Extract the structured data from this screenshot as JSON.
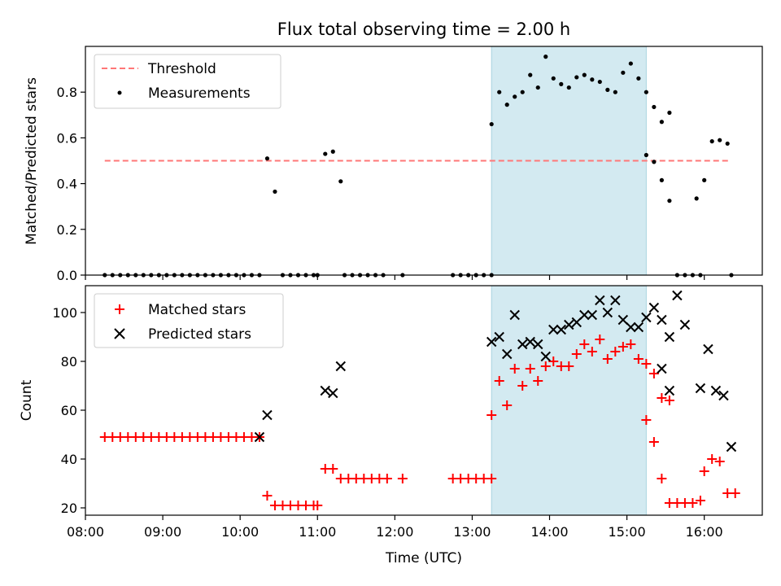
{
  "chart_data": [
    {
      "type": "scatter",
      "title": "Flux total observing time = 2.00 h",
      "ylabel": "Matched/Predicted stars",
      "xlabel": "",
      "xlim": [
        "08:00",
        "16:45"
      ],
      "ylim": [
        0,
        1.0
      ],
      "yticks": [
        "0.0",
        "0.2",
        "0.4",
        "0.6",
        "0.8"
      ],
      "grid": false,
      "legend_position": "upper-left",
      "highlight_span": {
        "start": "13:15",
        "end": "15:15",
        "color": "#d3eaf1"
      },
      "threshold": {
        "name": "Threshold",
        "y": 0.5,
        "x_start": "08:15",
        "x_end": "16:20",
        "color": "#ff7777",
        "style": "dashed"
      },
      "series": [
        {
          "name": "Measurements",
          "color": "#000000",
          "marker": "dot",
          "points": [
            [
              "08:15",
              0
            ],
            [
              "08:21",
              0
            ],
            [
              "08:27",
              0
            ],
            [
              "08:33",
              0
            ],
            [
              "08:39",
              0
            ],
            [
              "08:45",
              0
            ],
            [
              "08:51",
              0
            ],
            [
              "08:57",
              0
            ],
            [
              "09:03",
              0
            ],
            [
              "09:09",
              0
            ],
            [
              "09:15",
              0
            ],
            [
              "09:21",
              0
            ],
            [
              "09:27",
              0
            ],
            [
              "09:33",
              0
            ],
            [
              "09:39",
              0
            ],
            [
              "09:45",
              0
            ],
            [
              "09:51",
              0
            ],
            [
              "09:57",
              0
            ],
            [
              "10:03",
              0
            ],
            [
              "10:09",
              0
            ],
            [
              "10:15",
              0
            ],
            [
              "10:21",
              0.51
            ],
            [
              "10:27",
              0.365
            ],
            [
              "10:33",
              0
            ],
            [
              "10:39",
              0
            ],
            [
              "10:45",
              0
            ],
            [
              "10:51",
              0
            ],
            [
              "10:57",
              0
            ],
            [
              "11:00",
              0
            ],
            [
              "11:06",
              0.53
            ],
            [
              "11:12",
              0.54
            ],
            [
              "11:18",
              0.41
            ],
            [
              "11:21",
              0
            ],
            [
              "11:27",
              0
            ],
            [
              "11:33",
              0
            ],
            [
              "11:39",
              0
            ],
            [
              "11:45",
              0
            ],
            [
              "11:51",
              0
            ],
            [
              "12:06",
              0
            ],
            [
              "12:45",
              0
            ],
            [
              "12:51",
              0
            ],
            [
              "12:57",
              0
            ],
            [
              "13:03",
              0
            ],
            [
              "13:09",
              0
            ],
            [
              "13:15",
              0
            ],
            [
              "13:15",
              0.66
            ],
            [
              "13:21",
              0.8
            ],
            [
              "13:27",
              0.745
            ],
            [
              "13:33",
              0.78
            ],
            [
              "13:39",
              0.8
            ],
            [
              "13:45",
              0.875
            ],
            [
              "13:51",
              0.82
            ],
            [
              "13:57",
              0.955
            ],
            [
              "14:03",
              0.86
            ],
            [
              "14:09",
              0.835
            ],
            [
              "14:15",
              0.82
            ],
            [
              "14:21",
              0.865
            ],
            [
              "14:27",
              0.875
            ],
            [
              "14:33",
              0.855
            ],
            [
              "14:39",
              0.845
            ],
            [
              "14:45",
              0.81
            ],
            [
              "14:51",
              0.8
            ],
            [
              "14:57",
              0.885
            ],
            [
              "15:03",
              0.925
            ],
            [
              "15:09",
              0.86
            ],
            [
              "15:15",
              0.8
            ],
            [
              "15:21",
              0.735
            ],
            [
              "15:27",
              0.67
            ],
            [
              "15:33",
              0.71
            ],
            [
              "15:15",
              0.525
            ],
            [
              "15:21",
              0.495
            ],
            [
              "15:27",
              0.415
            ],
            [
              "15:33",
              0.325
            ],
            [
              "15:39",
              0
            ],
            [
              "15:45",
              0
            ],
            [
              "15:51",
              0
            ],
            [
              "15:57",
              0
            ],
            [
              "15:54",
              0.335
            ],
            [
              "16:00",
              0.415
            ],
            [
              "16:06",
              0.585
            ],
            [
              "16:12",
              0.59
            ],
            [
              "16:18",
              0.575
            ],
            [
              "16:21",
              0
            ]
          ]
        }
      ]
    },
    {
      "type": "scatter",
      "xlabel": "Time (UTC)",
      "ylabel": "Count",
      "xlim": [
        "08:00",
        "16:45"
      ],
      "ylim": [
        17,
        111
      ],
      "xticks": [
        "08:00",
        "09:00",
        "10:00",
        "11:00",
        "12:00",
        "13:00",
        "14:00",
        "15:00",
        "16:00"
      ],
      "yticks": [
        "20",
        "40",
        "60",
        "80",
        "100"
      ],
      "grid": false,
      "legend_position": "upper-left",
      "highlight_span": {
        "start": "13:15",
        "end": "15:15",
        "color": "#d3eaf1"
      },
      "series": [
        {
          "name": "Matched stars",
          "color": "#ff0000",
          "marker": "plus",
          "points": [
            [
              "08:15",
              49
            ],
            [
              "08:21",
              49
            ],
            [
              "08:27",
              49
            ],
            [
              "08:33",
              49
            ],
            [
              "08:39",
              49
            ],
            [
              "08:45",
              49
            ],
            [
              "08:51",
              49
            ],
            [
              "08:57",
              49
            ],
            [
              "09:03",
              49
            ],
            [
              "09:09",
              49
            ],
            [
              "09:15",
              49
            ],
            [
              "09:21",
              49
            ],
            [
              "09:27",
              49
            ],
            [
              "09:33",
              49
            ],
            [
              "09:39",
              49
            ],
            [
              "09:45",
              49
            ],
            [
              "09:51",
              49
            ],
            [
              "09:57",
              49
            ],
            [
              "10:03",
              49
            ],
            [
              "10:09",
              49
            ],
            [
              "10:15",
              49
            ],
            [
              "10:21",
              25
            ],
            [
              "10:27",
              21
            ],
            [
              "10:33",
              21
            ],
            [
              "10:39",
              21
            ],
            [
              "10:45",
              21
            ],
            [
              "10:51",
              21
            ],
            [
              "10:57",
              21
            ],
            [
              "11:00",
              21
            ],
            [
              "11:06",
              36
            ],
            [
              "11:12",
              36
            ],
            [
              "11:18",
              32
            ],
            [
              "11:24",
              32
            ],
            [
              "11:30",
              32
            ],
            [
              "11:36",
              32
            ],
            [
              "11:42",
              32
            ],
            [
              "11:48",
              32
            ],
            [
              "11:54",
              32
            ],
            [
              "12:06",
              32
            ],
            [
              "12:45",
              32
            ],
            [
              "12:51",
              32
            ],
            [
              "12:57",
              32
            ],
            [
              "13:03",
              32
            ],
            [
              "13:09",
              32
            ],
            [
              "13:15",
              32
            ],
            [
              "13:15",
              58
            ],
            [
              "13:21",
              72
            ],
            [
              "13:27",
              62
            ],
            [
              "13:33",
              77
            ],
            [
              "13:39",
              70
            ],
            [
              "13:45",
              77
            ],
            [
              "13:51",
              72
            ],
            [
              "13:57",
              78
            ],
            [
              "14:03",
              80
            ],
            [
              "14:09",
              78
            ],
            [
              "14:15",
              78
            ],
            [
              "14:21",
              83
            ],
            [
              "14:27",
              87
            ],
            [
              "14:33",
              84
            ],
            [
              "14:39",
              89
            ],
            [
              "14:45",
              81
            ],
            [
              "14:51",
              84
            ],
            [
              "14:57",
              86
            ],
            [
              "15:03",
              87
            ],
            [
              "15:09",
              81
            ],
            [
              "15:15",
              79
            ],
            [
              "15:21",
              75
            ],
            [
              "15:27",
              65
            ],
            [
              "15:33",
              64
            ],
            [
              "15:15",
              56
            ],
            [
              "15:21",
              47
            ],
            [
              "15:27",
              32
            ],
            [
              "15:33",
              22
            ],
            [
              "15:39",
              22
            ],
            [
              "15:45",
              22
            ],
            [
              "15:51",
              22
            ],
            [
              "15:57",
              23
            ],
            [
              "16:00",
              35
            ],
            [
              "16:06",
              40
            ],
            [
              "16:12",
              39
            ],
            [
              "16:18",
              26
            ],
            [
              "16:24",
              26
            ]
          ]
        },
        {
          "name": "Predicted stars",
          "color": "#000000",
          "marker": "cross",
          "points": [
            [
              "10:15",
              49
            ],
            [
              "10:21",
              58
            ],
            [
              "11:06",
              68
            ],
            [
              "11:12",
              67
            ],
            [
              "11:18",
              78
            ],
            [
              "13:15",
              88
            ],
            [
              "13:21",
              90
            ],
            [
              "13:27",
              83
            ],
            [
              "13:33",
              99
            ],
            [
              "13:39",
              87
            ],
            [
              "13:45",
              88
            ],
            [
              "13:51",
              87
            ],
            [
              "13:57",
              82
            ],
            [
              "14:03",
              93
            ],
            [
              "14:09",
              93
            ],
            [
              "14:15",
              95
            ],
            [
              "14:21",
              96
            ],
            [
              "14:27",
              99
            ],
            [
              "14:33",
              99
            ],
            [
              "14:39",
              105
            ],
            [
              "14:45",
              100
            ],
            [
              "14:51",
              105
            ],
            [
              "14:57",
              97
            ],
            [
              "15:03",
              94
            ],
            [
              "15:09",
              94
            ],
            [
              "15:15",
              98
            ],
            [
              "15:21",
              102
            ],
            [
              "15:27",
              97
            ],
            [
              "15:33",
              90
            ],
            [
              "15:39",
              107
            ],
            [
              "15:45",
              95
            ],
            [
              "15:27",
              77
            ],
            [
              "15:33",
              68
            ],
            [
              "15:57",
              69
            ],
            [
              "16:03",
              85
            ],
            [
              "16:09",
              68
            ],
            [
              "16:15",
              66
            ],
            [
              "16:21",
              45
            ]
          ]
        }
      ]
    }
  ]
}
